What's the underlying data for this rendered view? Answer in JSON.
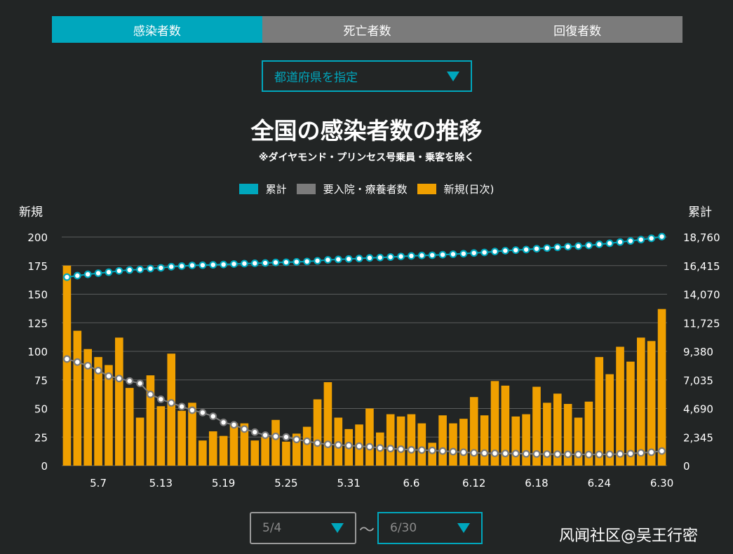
{
  "tabs": [
    {
      "label": "感染者数",
      "active": true
    },
    {
      "label": "死亡者数",
      "active": false
    },
    {
      "label": "回復者数",
      "active": false
    }
  ],
  "prefecture_select": {
    "placeholder": "都道府県を指定"
  },
  "date_range": {
    "from": "5/4",
    "to": "6/30",
    "separator": "〜"
  },
  "watermark": "风闻社区@吴王行密",
  "colors": {
    "tab_active": "#00a7bd",
    "tab_inactive": "#7b7b7b",
    "cumulative": "#00a7bd",
    "hospitalized": "#7b7b7b",
    "new_cases": "#f0a000",
    "background": "#222525"
  },
  "chart_data": {
    "type": "bar",
    "title": "全国の感染者数の推移",
    "subtitle": "※ダイヤモンド・プリンセス号乗員・乗客を除く",
    "ylabel_left": "新規",
    "ylabel_right": "累計",
    "legend": [
      "累計",
      "要入院・療養者数",
      "新規(日次)"
    ],
    "legend_position": "top-center",
    "grid": true,
    "ylim_left": [
      0,
      200
    ],
    "ylim_right": [
      0,
      18760
    ],
    "yticks_left": [
      "0",
      "25",
      "50",
      "75",
      "100",
      "125",
      "150",
      "175",
      "200"
    ],
    "yticks_right": [
      "0",
      "2,345",
      "4,690",
      "7,035",
      "9,380",
      "11,725",
      "14,070",
      "16,415",
      "18,760"
    ],
    "x_tick_labels": [
      "5.7",
      "5.13",
      "5.19",
      "5.25",
      "5.31",
      "6.6",
      "6.12",
      "6.18",
      "6.24",
      "6.30"
    ],
    "x_tick_days": [
      7,
      13,
      19,
      25,
      31,
      37,
      43,
      49,
      55,
      61
    ],
    "x_start_day": 4,
    "series": [
      {
        "name": "新規(日次)",
        "kind": "bar",
        "values": [
          175,
          118,
          102,
          95,
          88,
          112,
          68,
          42,
          79,
          52,
          98,
          48,
          55,
          22,
          30,
          26,
          37,
          37,
          22,
          25,
          40,
          21,
          28,
          34,
          58,
          73,
          42,
          32,
          36,
          50,
          29,
          45,
          43,
          45,
          37,
          20,
          44,
          37,
          41,
          60,
          44,
          74,
          70,
          43,
          45,
          69,
          55,
          63,
          54,
          42,
          56,
          95,
          80,
          104,
          91,
          112,
          109,
          137
        ]
      },
      {
        "name": "累計",
        "kind": "line",
        "values": [
          15470,
          15590,
          15700,
          15790,
          15875,
          15985,
          16055,
          16100,
          16175,
          16230,
          16325,
          16375,
          16430,
          16450,
          16480,
          16505,
          16545,
          16580,
          16605,
          16630,
          16670,
          16690,
          16720,
          16755,
          16810,
          16885,
          16925,
          16960,
          16995,
          17045,
          17075,
          17120,
          17165,
          17210,
          17245,
          17265,
          17310,
          17350,
          17390,
          17450,
          17495,
          17570,
          17640,
          17685,
          17730,
          17800,
          17855,
          17915,
          17970,
          18015,
          18070,
          18165,
          18245,
          18350,
          18440,
          18550,
          18655,
          18795
        ]
      },
      {
        "name": "要入院・療養者数",
        "kind": "line",
        "values": [
          8750,
          8500,
          8200,
          7800,
          7350,
          7150,
          6950,
          6750,
          5850,
          5450,
          5150,
          4850,
          4550,
          4350,
          4050,
          3550,
          3350,
          3000,
          2750,
          2500,
          2400,
          2350,
          2150,
          2000,
          1850,
          1750,
          1700,
          1650,
          1600,
          1550,
          1450,
          1400,
          1350,
          1300,
          1280,
          1250,
          1200,
          1150,
          1100,
          1050,
          1030,
          1010,
          1000,
          990,
          970,
          960,
          950,
          940,
          930,
          920,
          910,
          920,
          930,
          960,
          990,
          1050,
          1100,
          1200
        ]
      }
    ]
  }
}
